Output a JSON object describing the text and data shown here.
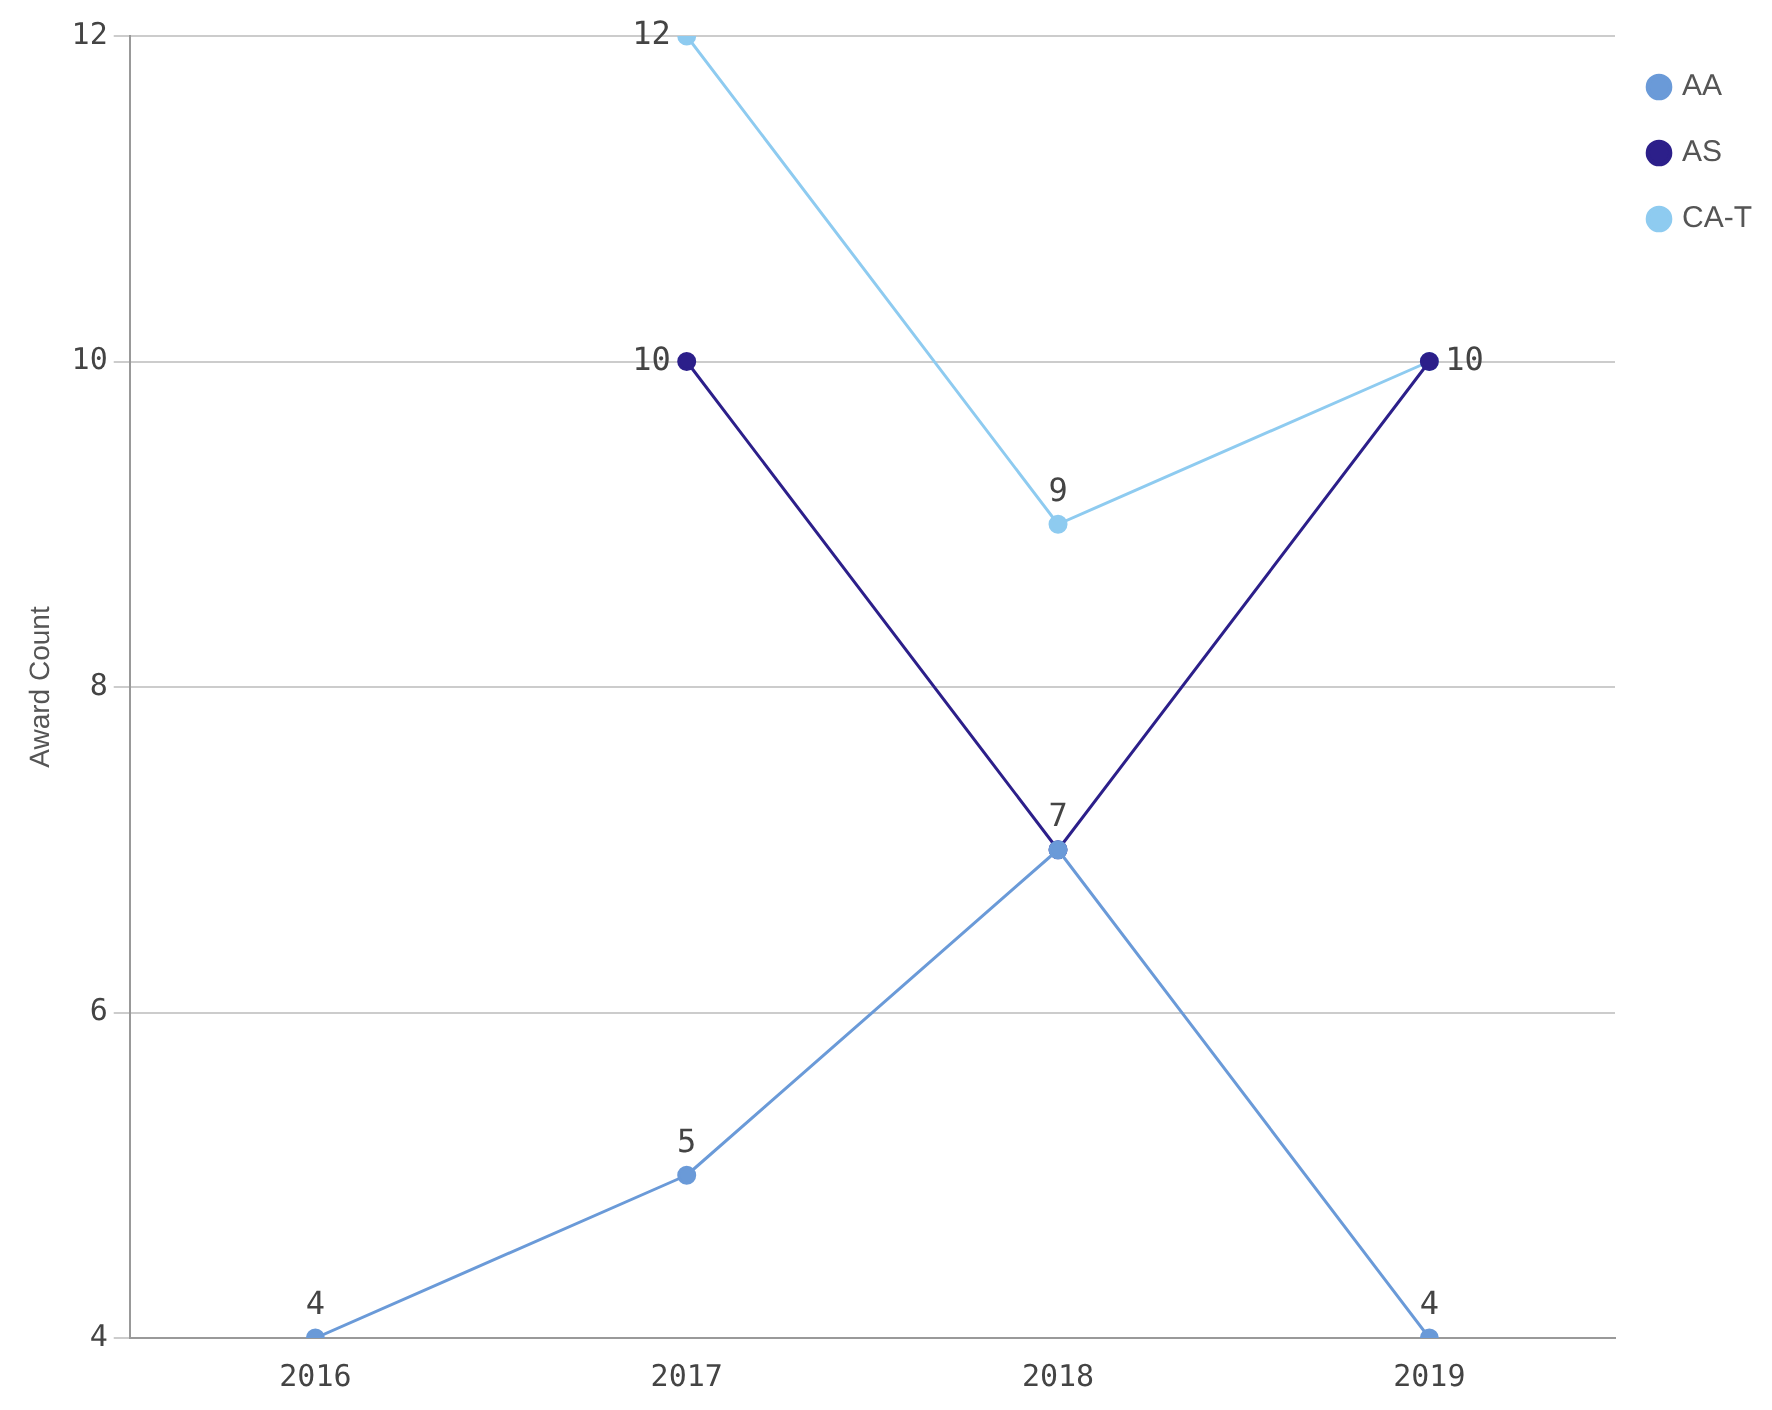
{
  "chart_data": {
    "type": "line",
    "ylabel": "Award Count",
    "categories": [
      "2016",
      "2017",
      "2018",
      "2019"
    ],
    "series": [
      {
        "name": "AA",
        "color": "#6a9ad8",
        "values": [
          4,
          5,
          7,
          4
        ],
        "value_labels": [
          "4",
          "5",
          "7",
          "4"
        ]
      },
      {
        "name": "AS",
        "color": "#2c1f8a",
        "values": [
          null,
          10,
          7,
          10
        ],
        "value_labels": [
          null,
          "10",
          null,
          "10"
        ]
      },
      {
        "name": "CA-T",
        "color": "#8ecbf0",
        "values": [
          null,
          12,
          9,
          10
        ],
        "value_labels": [
          null,
          "12",
          "9",
          null
        ]
      }
    ],
    "ylim": [
      4,
      12
    ],
    "yticks": [
      4,
      6,
      8,
      10,
      12
    ],
    "grid": "y",
    "legend": "top right",
    "marker": "circle"
  }
}
